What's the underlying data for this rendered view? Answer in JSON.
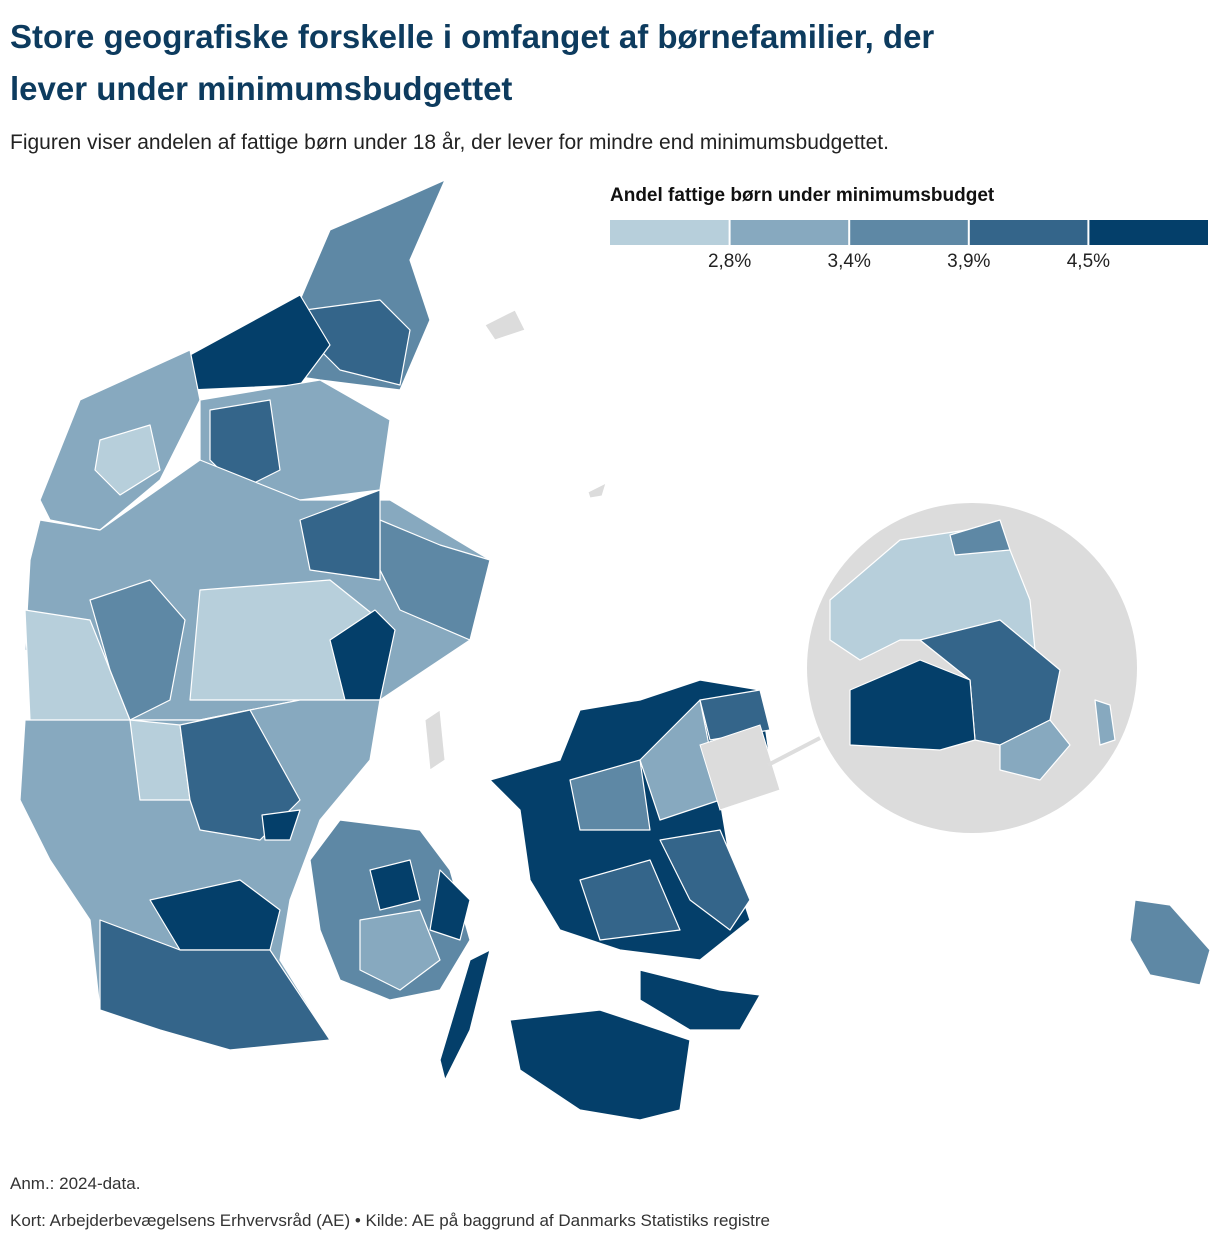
{
  "header": {
    "title_lines": [
      "Store geografiske forskelle i omfanget af børnefamilier, der",
      "lever under minimumsbudgettet"
    ],
    "subtitle": "Figuren viser andelen af fattige børn under 18 år, der lever for mindre end minimumsbudgettet."
  },
  "legend": {
    "title": "Andel fattige børn under minimumsbudget",
    "colors": [
      "#b7cfdb",
      "#87a9bf",
      "#5e88a5",
      "#34658a",
      "#043f6a"
    ],
    "ticks": [
      {
        "value": 2.8,
        "label": "2,8%"
      },
      {
        "value": 3.4,
        "label": "3,4%"
      },
      {
        "value": 3.9,
        "label": "3,9%"
      },
      {
        "value": 4.5,
        "label": "4,5%"
      }
    ]
  },
  "footer": {
    "note": "Anm.: 2024-data.",
    "source": "Kort: Arbejderbevægelsens Erhvervsråd (AE) • Kilde: AE på baggrund af Danmarks Statistiks registre"
  }
}
